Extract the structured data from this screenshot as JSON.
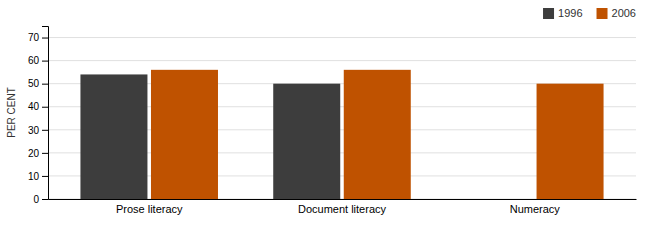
{
  "chart_data": {
    "type": "bar",
    "categories": [
      "Prose literacy",
      "Document literacy",
      "Numeracy"
    ],
    "series": [
      {
        "name": "1996",
        "color": "#3d3d3d",
        "values": [
          54,
          50,
          0
        ]
      },
      {
        "name": "2006",
        "color": "#bf5200",
        "values": [
          56,
          56,
          50
        ]
      }
    ],
    "ylabel": "PER CENT",
    "ylim": [
      0,
      75
    ],
    "yticks": [
      0,
      10,
      20,
      30,
      40,
      50,
      60,
      70
    ],
    "grid": true,
    "legend": "upper right"
  }
}
